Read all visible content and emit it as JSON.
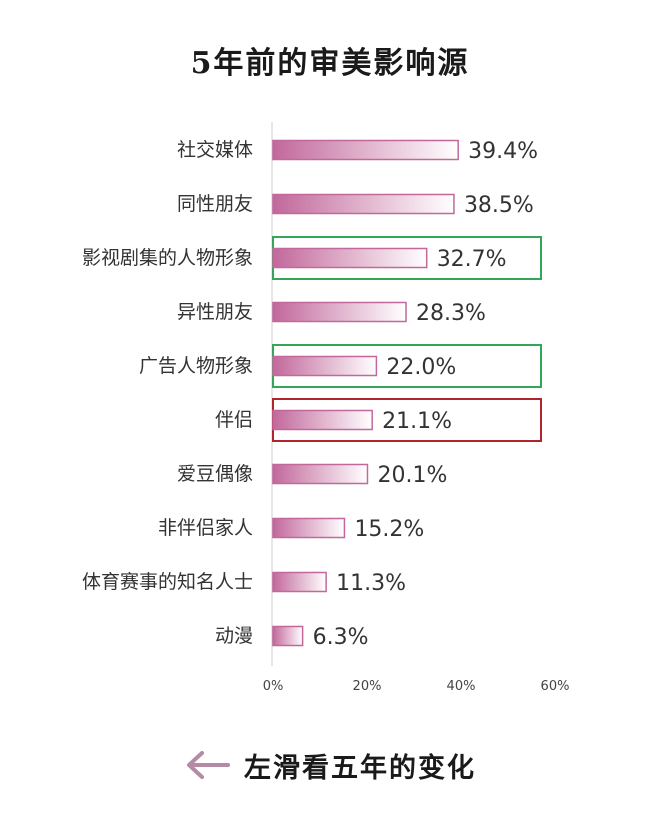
{
  "title": "5年前的审美影响源",
  "footer": {
    "text": "左滑看五年的变化",
    "icon": "left-arrow-icon"
  },
  "colors": {
    "bar_dark": "#c2689b",
    "bar_light": "#ffffff",
    "bar_border": "#c2689b",
    "highlight_green": "#33a65a",
    "highlight_red": "#b0252c",
    "axis": "#cccccc",
    "footer_arrow": "#b48aa4"
  },
  "chart_data": {
    "type": "bar",
    "orientation": "horizontal",
    "title": "5年前的审美影响源",
    "categories": [
      "社交媒体",
      "同性朋友",
      "影视剧集的人物形象",
      "异性朋友",
      "广告人物形象",
      "伴侣",
      "爱豆偶像",
      "非伴侣家人",
      "体育赛事的知名人士",
      "动漫"
    ],
    "values": [
      39.4,
      38.5,
      32.7,
      28.3,
      22.0,
      21.1,
      20.1,
      15.2,
      11.3,
      6.3
    ],
    "value_labels": [
      "39.4%",
      "38.5%",
      "32.7%",
      "28.3%",
      "22.0%",
      "21.1%",
      "20.1%",
      "15.2%",
      "11.3%",
      "6.3%"
    ],
    "highlights": [
      {
        "category": "影视剧集的人物形象",
        "color": "green"
      },
      {
        "category": "广告人物形象",
        "color": "green"
      },
      {
        "category": "伴侣",
        "color": "red"
      }
    ],
    "xlim": [
      0,
      60
    ],
    "xticks": [
      "0%",
      "20%",
      "40%",
      "60%"
    ],
    "grid": false,
    "legend": "none"
  }
}
